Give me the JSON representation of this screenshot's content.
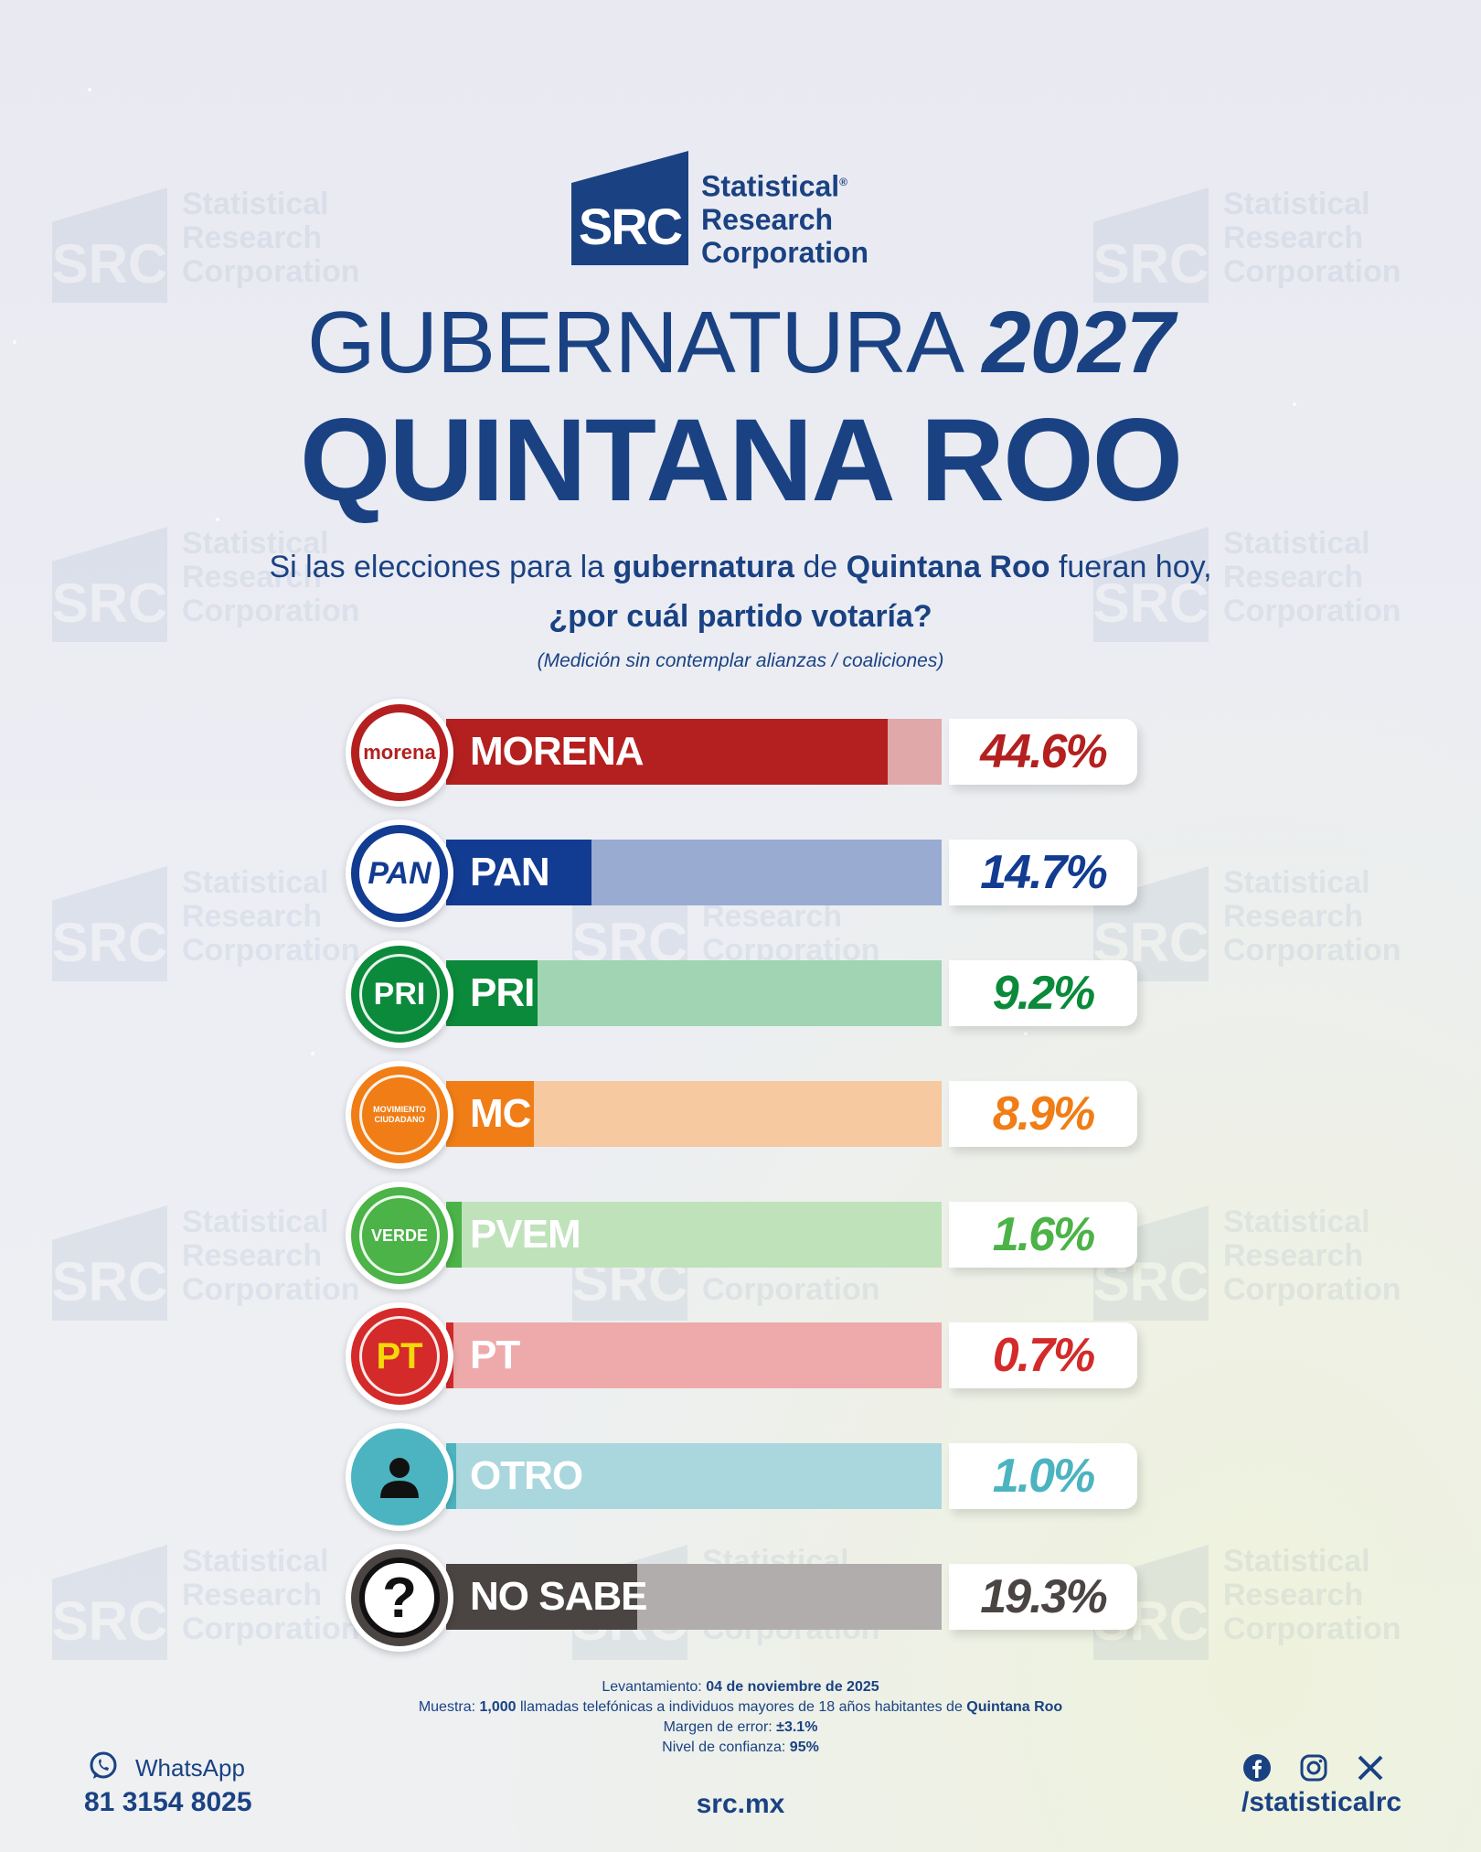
{
  "brand": {
    "logo_mark": "SRC",
    "logo_line1": "Statistical",
    "logo_line2": "Research",
    "logo_line3": "Corporation",
    "primary_color": "#1a4283"
  },
  "header": {
    "title_word": "GUBERNATURA",
    "title_year": "2027",
    "subtitle": "QUINTANA ROO",
    "question_part1": "Si las elecciones para la ",
    "question_bold1": "gubernatura",
    "question_part2": " de ",
    "question_bold2": "Quintana Roo",
    "question_part3": " fueran hoy,",
    "question_line2": "¿por cuál partido votaría?",
    "note": "(Medición sin contemplar alianzas / coaliciones)"
  },
  "chart_data": {
    "type": "bar",
    "orientation": "horizontal",
    "categories": [
      "MORENA",
      "PAN",
      "PRI",
      "MC",
      "PVEM",
      "PT",
      "OTRO",
      "NO SABE"
    ],
    "values": [
      44.6,
      14.7,
      9.2,
      8.9,
      1.6,
      0.7,
      1.0,
      19.3
    ],
    "value_labels": [
      "44.6%",
      "14.7%",
      "9.2%",
      "8.9%",
      "1.6%",
      "0.7%",
      "1.0%",
      "19.3%"
    ],
    "colors": [
      "#b3201f",
      "#123b92",
      "#0a8a3a",
      "#f07d15",
      "#4bb347",
      "#d42a2a",
      "#4bb4c0",
      "#4a4443"
    ],
    "light_colors": [
      "#e0a8a8",
      "#9aabd2",
      "#a0d4b3",
      "#f6c9a0",
      "#bfe2bb",
      "#eeaaab",
      "#a9d7dd",
      "#b0adac"
    ],
    "badges": [
      "morena",
      "PAN",
      "PRI",
      "MOVIMIENTO CIUDADANO",
      "VERDE",
      "PT",
      "person-icon",
      "question-icon"
    ],
    "xlim": [
      0,
      50
    ]
  },
  "footer": {
    "levantamiento_label": "Levantamiento: ",
    "levantamiento_value": "04 de noviembre de 2025",
    "muestra_label": "Muestra: ",
    "muestra_value": "1,000",
    "muestra_text": " llamadas telefónicas a individuos mayores de 18 años habitantes de ",
    "muestra_place": "Quintana Roo",
    "margen_label": "Margen de error: ",
    "margen_value": "±3.1%",
    "nivel_label": "Nivel de confianza: ",
    "nivel_value": "95%",
    "whatsapp_label": "WhatsApp",
    "phone": "81 3154 8025",
    "website": "src.mx",
    "social_handle": "/statisticalrc"
  }
}
